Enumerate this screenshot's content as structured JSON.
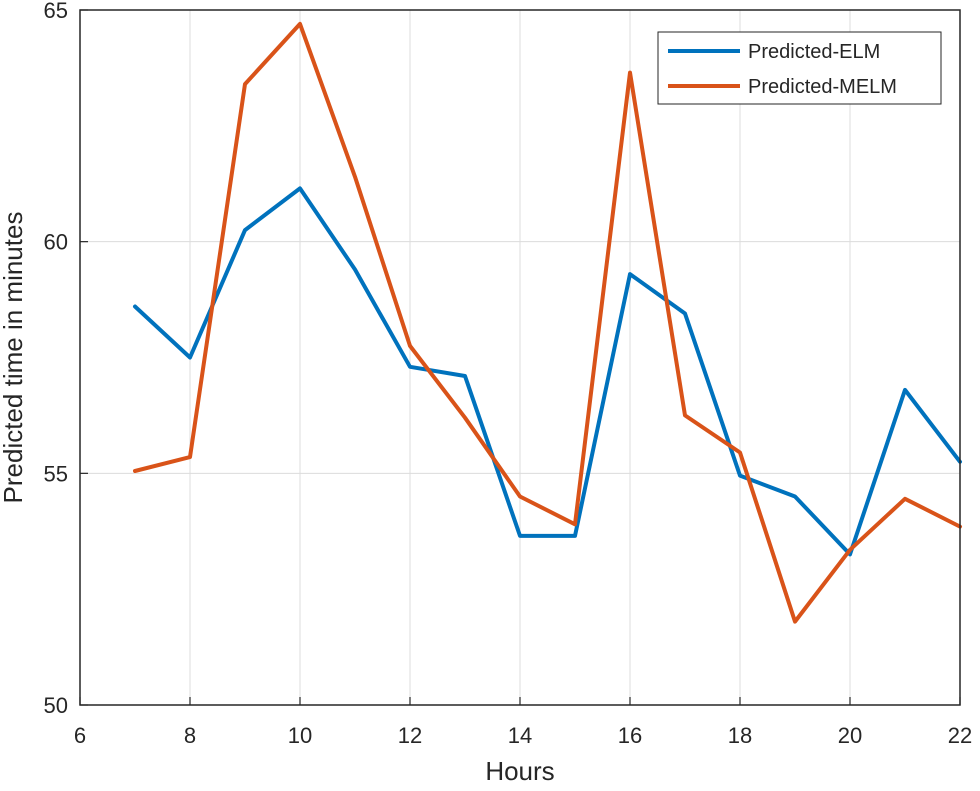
{
  "chart_data": {
    "type": "line",
    "title": "",
    "xlabel": "Hours",
    "ylabel": "Predicted time in minutes",
    "xlim": [
      6,
      22
    ],
    "ylim": [
      50,
      65
    ],
    "xticks": [
      6,
      8,
      10,
      12,
      14,
      16,
      18,
      20,
      22
    ],
    "yticks": [
      50,
      55,
      60,
      65
    ],
    "xtick_labels": [
      "6",
      "8",
      "10",
      "12",
      "14",
      "16",
      "18",
      "20",
      "22"
    ],
    "ytick_labels": [
      "50",
      "55",
      "60",
      "65"
    ],
    "grid": true,
    "legend_position": "top-right",
    "x": [
      7,
      8,
      9,
      10,
      11,
      12,
      13,
      14,
      15,
      16,
      17,
      18,
      19,
      20,
      21,
      22
    ],
    "series": [
      {
        "name": "Predicted-ELM",
        "color": "#0072BD",
        "values": [
          58.6,
          57.5,
          60.25,
          61.15,
          59.4,
          57.3,
          57.1,
          53.65,
          53.65,
          59.3,
          58.45,
          54.95,
          54.5,
          53.25,
          56.8,
          55.25
        ]
      },
      {
        "name": "Predicted-MELM",
        "color": "#D95319",
        "values": [
          55.05,
          55.35,
          63.4,
          64.7,
          61.4,
          57.75,
          56.2,
          54.5,
          53.9,
          63.65,
          56.25,
          55.45,
          51.8,
          53.35,
          54.45,
          53.85
        ]
      }
    ]
  }
}
